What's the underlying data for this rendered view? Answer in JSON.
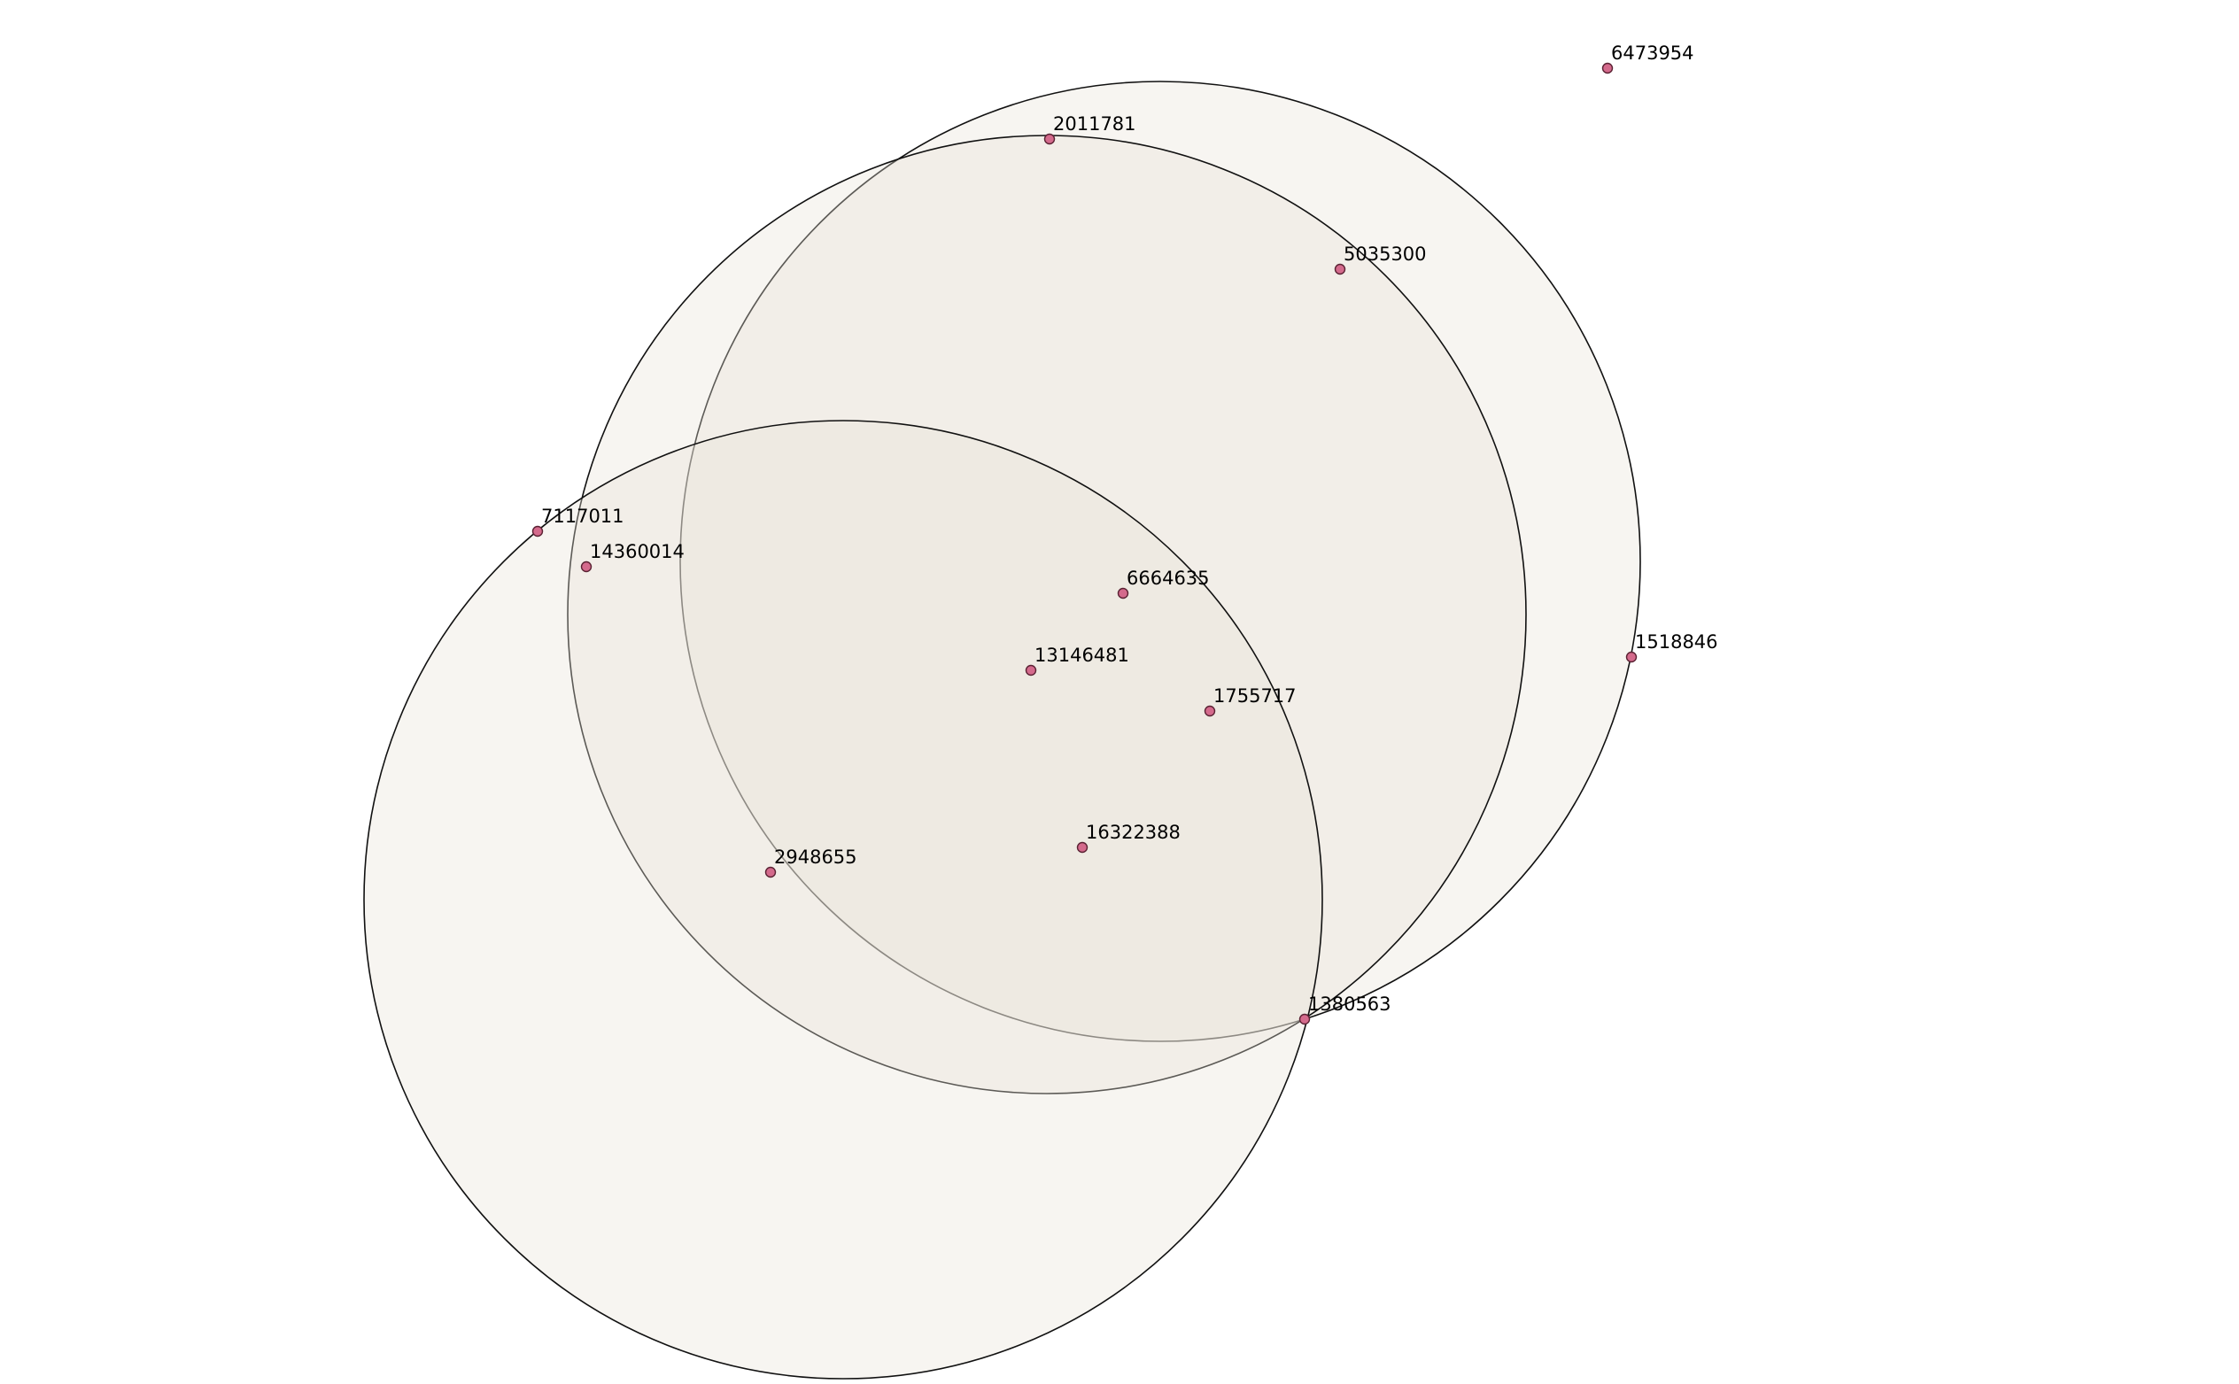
{
  "sets": [
    {
      "id": "set-a"
    },
    {
      "id": "set-b"
    },
    {
      "id": "set-c"
    }
  ],
  "points": [
    {
      "label": "6473954"
    },
    {
      "label": "2011781"
    },
    {
      "label": "5035300"
    },
    {
      "label": "7117011"
    },
    {
      "label": "14360014"
    },
    {
      "label": "6664635"
    },
    {
      "label": "1518846"
    },
    {
      "label": "13146481"
    },
    {
      "label": "1755717"
    },
    {
      "label": "16322388"
    },
    {
      "label": "2948655"
    },
    {
      "label": "1380563"
    }
  ],
  "colors": {
    "point_fill": "#d46a8c",
    "circle_fill": "#e7e3d8",
    "circle_stroke": "#111111"
  }
}
